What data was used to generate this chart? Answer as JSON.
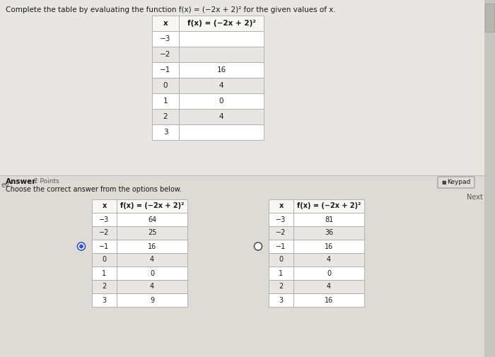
{
  "title": "Complete the table by evaluating the function f(x) = (-2x + 2)² for the given values of x.",
  "title_plain": "Complete the table by evaluating the function ",
  "title_formula": "f(x) = (−2x + 2)²",
  "title_suffix": " for the given values of x.",
  "top_table": {
    "col1_header": "x",
    "col2_header": "f(x) = (−2x + 2)²",
    "rows": [
      [
        "−3",
        ""
      ],
      [
        "−2",
        ""
      ],
      [
        "−1",
        "16"
      ],
      [
        "0",
        "4"
      ],
      [
        "1",
        "0"
      ],
      [
        "2",
        "4"
      ],
      [
        "3",
        ""
      ]
    ]
  },
  "answer_label": "Answer",
  "answer_points": "2 Points",
  "choose_label": "Choose the correct answer from the options below.",
  "keypad_label": "Keypad",
  "prev_label": "ev",
  "next_label": "Next",
  "option_a": {
    "col1_header": "x",
    "col2_header": "f(x) = (−2x + 2)²",
    "rows": [
      [
        "−3",
        "64"
      ],
      [
        "−2",
        "25"
      ],
      [
        "−1",
        "16"
      ],
      [
        "0",
        "4"
      ],
      [
        "1",
        "0"
      ],
      [
        "2",
        "4"
      ],
      [
        "3",
        "9"
      ]
    ],
    "selected": true
  },
  "option_b": {
    "col1_header": "x",
    "col2_header": "f(x) = (−2x + 2)²",
    "rows": [
      [
        "−3",
        "81"
      ],
      [
        "−2",
        "36"
      ],
      [
        "−1",
        "16"
      ],
      [
        "0",
        "4"
      ],
      [
        "1",
        "0"
      ],
      [
        "2",
        "4"
      ],
      [
        "3",
        "16"
      ]
    ],
    "selected": false
  },
  "bg_color": "#f0eeec",
  "top_section_bg": "#e8e6e3",
  "bottom_section_bg": "#dedad6",
  "table_bg_white": "#ffffff",
  "table_bg_light": "#e8e6e4",
  "border_color": "#aaaaaa",
  "text_color": "#1a1a1a",
  "title_font_size": 7.5,
  "table_font_size": 7.5,
  "small_font_size": 7.0,
  "answer_font_size": 7.5,
  "radio_selected_color": "#3355bb",
  "radio_empty_color": "#555555",
  "keypad_bg": "#e0dedd",
  "keypad_border": "#bbbbbb",
  "scroll_bar_color": "#cccccc",
  "divider_color": "#bbbbbb"
}
